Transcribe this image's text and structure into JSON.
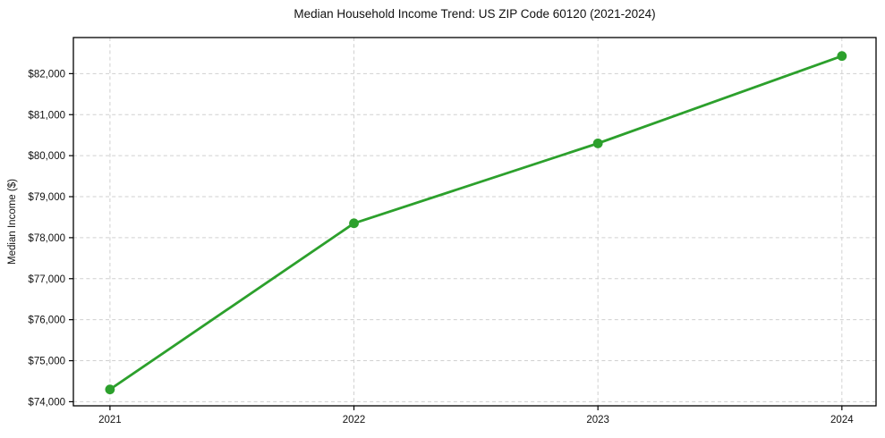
{
  "chart_data": {
    "type": "line",
    "title": "Median Household Income Trend: US ZIP Code 60120 (2021-2024)",
    "ylabel": "Median Income ($)",
    "xlabel": "",
    "x": [
      2021,
      2022,
      2023,
      2024
    ],
    "x_tick_labels": [
      "2021",
      "2022",
      "2023",
      "2024"
    ],
    "values": [
      74300,
      78350,
      80300,
      82430
    ],
    "yticks": [
      74000,
      75000,
      76000,
      77000,
      78000,
      79000,
      80000,
      81000,
      82000
    ],
    "ytick_labels": [
      "$74,000",
      "$75,000",
      "$76,000",
      "$77,000",
      "$78,000",
      "$79,000",
      "$80,000",
      "$81,000",
      "$82,000"
    ],
    "xlim": [
      2020.85,
      2024.14
    ],
    "ylim": [
      73900,
      82880
    ],
    "grid": true,
    "legend": false,
    "colors": {
      "line": "#2ca02c",
      "marker": "#2ca02c",
      "grid": "#d0d0d0",
      "spine": "#000000",
      "tick_text": "#111111"
    }
  }
}
